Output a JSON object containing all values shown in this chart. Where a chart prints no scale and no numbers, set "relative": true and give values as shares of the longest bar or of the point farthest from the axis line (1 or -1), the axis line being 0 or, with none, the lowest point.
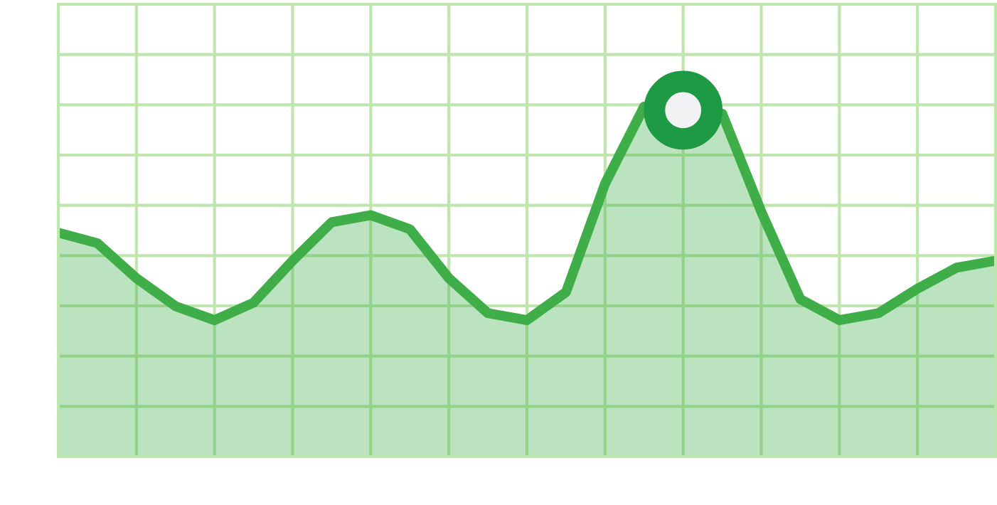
{
  "chart_data": {
    "type": "area",
    "relative": true,
    "grid": true,
    "marker": "none",
    "line_style": "solid",
    "categories": [
      null,
      null,
      null,
      null,
      null,
      null,
      null,
      null,
      null,
      null,
      null,
      null,
      null,
      null,
      null,
      null,
      null,
      null,
      null,
      null,
      null,
      null,
      null,
      null,
      null
    ],
    "series": [
      {
        "color": "#3fae49",
        "values": [
          0.64,
          0.61,
          0.51,
          0.43,
          0.39,
          0.44,
          0.56,
          0.67,
          0.69,
          0.65,
          0.51,
          0.41,
          0.39,
          0.47,
          0.78,
          1.0,
          null,
          0.98,
          0.7,
          0.45,
          0.39,
          0.41,
          0.48,
          0.54,
          0.56
        ]
      }
    ]
  }
}
